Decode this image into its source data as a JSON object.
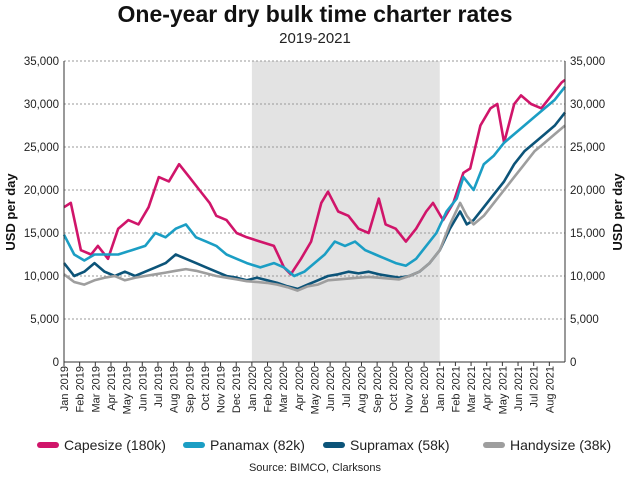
{
  "chart_data": {
    "type": "line",
    "title": "One-year dry bulk time charter rates",
    "subtitle": "2019-2021",
    "ylabel_left": "USD per day",
    "ylabel_right": "USD per day",
    "ylim": [
      0,
      35000
    ],
    "yticks": [
      "0",
      "5,000",
      "10,000",
      "15,000",
      "20,000",
      "25,000",
      "30,000",
      "35,000"
    ],
    "xlim": [
      "2019-01",
      "2021-09"
    ],
    "xticks": [
      "Jan 2019",
      "Feb 2019",
      "Mar 2019",
      "Apr 2019",
      "May 2019",
      "Jun 2019",
      "Jul 2019",
      "Aug 2019",
      "Sep 2019",
      "Oct 2019",
      "Nov 2019",
      "Dec 2019",
      "Jan 2020",
      "Feb 2020",
      "Mar 2020",
      "Apr 2020",
      "May 2020",
      "Jun 2020",
      "Jul 2020",
      "Aug 2020",
      "Sep 2020",
      "Oct 2020",
      "Nov 2020",
      "Dec 2020",
      "Jan 2021",
      "Feb 2021",
      "Mar 2021",
      "Apr 2021",
      "May 2021",
      "Jun 2021",
      "Jul 2021",
      "Aug 2021"
    ],
    "shaded_period": [
      "Jan 2020",
      "Jan 2021"
    ],
    "grid": "horizontal dashed",
    "legend_position": "bottom",
    "source": "Source: BIMCO, Clarksons",
    "x_weeks": [
      "2019-W01",
      "2019-W06",
      "2019-W10",
      "2019-W14",
      "2019-W19",
      "2019-W23",
      "2019-W27",
      "2019-W32",
      "2019-W36",
      "2019-W40",
      "2019-W45",
      "2019-W49",
      "2020-W01",
      "2020-W06",
      "2020-W10",
      "2020-W14",
      "2020-W19",
      "2020-W23",
      "2020-W27",
      "2020-W32",
      "2020-W36",
      "2020-W40",
      "2020-W45",
      "2020-W49",
      "2021-W01",
      "2021-W06",
      "2021-W10",
      "2021-W14",
      "2021-W19",
      "2021-W23",
      "2021-W27",
      "2021-W32",
      "2021-W35"
    ],
    "series": [
      {
        "name": "Capesize (180k)",
        "color": "#d0156a",
        "points": [
          [
            0,
            18000
          ],
          [
            2,
            18500
          ],
          [
            5,
            13000
          ],
          [
            8,
            12500
          ],
          [
            10,
            13500
          ],
          [
            13,
            12000
          ],
          [
            16,
            15500
          ],
          [
            19,
            16500
          ],
          [
            22,
            16000
          ],
          [
            25,
            18000
          ],
          [
            28,
            21500
          ],
          [
            31,
            21000
          ],
          [
            34,
            23000
          ],
          [
            37,
            21500
          ],
          [
            40,
            20000
          ],
          [
            43,
            18500
          ],
          [
            45,
            17000
          ],
          [
            48,
            16500
          ],
          [
            51,
            15000
          ],
          [
            54,
            14500
          ],
          [
            58,
            14000
          ],
          [
            62,
            13500
          ],
          [
            65,
            11000
          ],
          [
            67,
            10200
          ],
          [
            70,
            12000
          ],
          [
            73,
            14000
          ],
          [
            76,
            18500
          ],
          [
            78,
            19800
          ],
          [
            81,
            17500
          ],
          [
            84,
            17000
          ],
          [
            87,
            15500
          ],
          [
            90,
            15000
          ],
          [
            93,
            19000
          ],
          [
            95,
            16000
          ],
          [
            98,
            15500
          ],
          [
            101,
            14000
          ],
          [
            104,
            15500
          ],
          [
            107,
            17500
          ],
          [
            109,
            18500
          ],
          [
            112,
            16500
          ],
          [
            115,
            18500
          ],
          [
            118,
            22000
          ],
          [
            120,
            22500
          ],
          [
            123,
            27500
          ],
          [
            126,
            29500
          ],
          [
            128,
            30000
          ],
          [
            130,
            25500
          ],
          [
            133,
            30000
          ],
          [
            135,
            31000
          ],
          [
            138,
            30000
          ],
          [
            141,
            29500
          ],
          [
            144,
            31000
          ],
          [
            147,
            32500
          ],
          [
            148,
            32800
          ]
        ]
      },
      {
        "name": "Panamax (82k)",
        "color": "#1b9ec4",
        "points": [
          [
            0,
            14800
          ],
          [
            3,
            12500
          ],
          [
            6,
            11800
          ],
          [
            9,
            12500
          ],
          [
            12,
            12500
          ],
          [
            16,
            12500
          ],
          [
            20,
            13000
          ],
          [
            24,
            13500
          ],
          [
            27,
            15000
          ],
          [
            30,
            14500
          ],
          [
            33,
            15500
          ],
          [
            36,
            16000
          ],
          [
            39,
            14500
          ],
          [
            42,
            14000
          ],
          [
            45,
            13500
          ],
          [
            48,
            12500
          ],
          [
            51,
            12000
          ],
          [
            54,
            11500
          ],
          [
            58,
            11000
          ],
          [
            62,
            11500
          ],
          [
            65,
            11000
          ],
          [
            68,
            10000
          ],
          [
            71,
            10500
          ],
          [
            74,
            11500
          ],
          [
            77,
            12500
          ],
          [
            80,
            14000
          ],
          [
            83,
            13500
          ],
          [
            86,
            14000
          ],
          [
            89,
            13000
          ],
          [
            92,
            12500
          ],
          [
            95,
            12000
          ],
          [
            98,
            11500
          ],
          [
            101,
            11200
          ],
          [
            104,
            12000
          ],
          [
            107,
            13500
          ],
          [
            110,
            15000
          ],
          [
            113,
            17500
          ],
          [
            116,
            19000
          ],
          [
            118,
            21500
          ],
          [
            121,
            20000
          ],
          [
            124,
            23000
          ],
          [
            127,
            24000
          ],
          [
            130,
            25500
          ],
          [
            133,
            26500
          ],
          [
            136,
            27500
          ],
          [
            139,
            28500
          ],
          [
            142,
            29500
          ],
          [
            145,
            30500
          ],
          [
            148,
            32000
          ]
        ]
      },
      {
        "name": "Supramax (58k)",
        "color": "#0c5479",
        "points": [
          [
            0,
            11500
          ],
          [
            3,
            10000
          ],
          [
            6,
            10500
          ],
          [
            9,
            11500
          ],
          [
            12,
            10500
          ],
          [
            15,
            10000
          ],
          [
            18,
            10500
          ],
          [
            21,
            10000
          ],
          [
            24,
            10500
          ],
          [
            27,
            11000
          ],
          [
            30,
            11500
          ],
          [
            33,
            12500
          ],
          [
            36,
            12000
          ],
          [
            39,
            11500
          ],
          [
            42,
            11000
          ],
          [
            45,
            10500
          ],
          [
            48,
            10000
          ],
          [
            51,
            9800
          ],
          [
            54,
            9500
          ],
          [
            57,
            9800
          ],
          [
            60,
            9500
          ],
          [
            63,
            9200
          ],
          [
            66,
            8800
          ],
          [
            69,
            8500
          ],
          [
            72,
            9000
          ],
          [
            75,
            9500
          ],
          [
            78,
            10000
          ],
          [
            81,
            10200
          ],
          [
            84,
            10500
          ],
          [
            87,
            10300
          ],
          [
            90,
            10500
          ],
          [
            93,
            10200
          ],
          [
            96,
            10000
          ],
          [
            99,
            9800
          ],
          [
            102,
            10000
          ],
          [
            105,
            10500
          ],
          [
            108,
            11500
          ],
          [
            111,
            13000
          ],
          [
            114,
            15500
          ],
          [
            117,
            17500
          ],
          [
            119,
            16000
          ],
          [
            121,
            16500
          ],
          [
            124,
            18000
          ],
          [
            127,
            19500
          ],
          [
            130,
            21000
          ],
          [
            133,
            23000
          ],
          [
            136,
            24500
          ],
          [
            139,
            25500
          ],
          [
            142,
            26500
          ],
          [
            145,
            27500
          ],
          [
            148,
            29000
          ]
        ]
      },
      {
        "name": "Handysize (38k)",
        "color": "#9e9e9e",
        "points": [
          [
            0,
            10200
          ],
          [
            3,
            9300
          ],
          [
            6,
            9000
          ],
          [
            9,
            9500
          ],
          [
            12,
            9800
          ],
          [
            15,
            10000
          ],
          [
            18,
            9500
          ],
          [
            21,
            9800
          ],
          [
            24,
            10000
          ],
          [
            27,
            10200
          ],
          [
            30,
            10400
          ],
          [
            33,
            10600
          ],
          [
            36,
            10800
          ],
          [
            39,
            10600
          ],
          [
            42,
            10300
          ],
          [
            45,
            10000
          ],
          [
            48,
            9800
          ],
          [
            51,
            9600
          ],
          [
            54,
            9400
          ],
          [
            57,
            9300
          ],
          [
            60,
            9200
          ],
          [
            63,
            9000
          ],
          [
            66,
            8700
          ],
          [
            69,
            8300
          ],
          [
            72,
            8800
          ],
          [
            75,
            9000
          ],
          [
            78,
            9500
          ],
          [
            81,
            9600
          ],
          [
            84,
            9700
          ],
          [
            87,
            9800
          ],
          [
            90,
            9900
          ],
          [
            93,
            9800
          ],
          [
            96,
            9700
          ],
          [
            99,
            9600
          ],
          [
            102,
            10000
          ],
          [
            105,
            10500
          ],
          [
            108,
            11500
          ],
          [
            111,
            13000
          ],
          [
            114,
            16000
          ],
          [
            117,
            18500
          ],
          [
            119,
            17000
          ],
          [
            121,
            16000
          ],
          [
            124,
            17000
          ],
          [
            127,
            18500
          ],
          [
            130,
            20000
          ],
          [
            133,
            21500
          ],
          [
            136,
            23000
          ],
          [
            139,
            24500
          ],
          [
            142,
            25500
          ],
          [
            145,
            26500
          ],
          [
            148,
            27500
          ]
        ]
      }
    ]
  }
}
